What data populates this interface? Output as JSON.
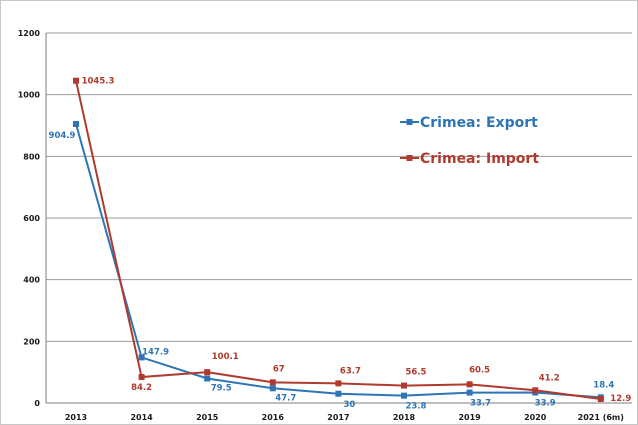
{
  "chart_data": {
    "type": "line",
    "title": "",
    "xlabel": "",
    "ylabel": "",
    "categories": [
      "2013",
      "2014",
      "2015",
      "2016",
      "2017",
      "2018",
      "2019",
      "2020",
      "2021 (6m)"
    ],
    "ylim": [
      0,
      1200
    ],
    "yticks": [
      "0",
      "200",
      "400",
      "600",
      "800",
      "1000",
      "1200"
    ],
    "grid": "horizontal",
    "legend_position": "right",
    "series": [
      {
        "name": "Crimea: Export",
        "color": "#2e75b6",
        "values": [
          904.9,
          147.9,
          79.5,
          47.7,
          30,
          23.8,
          33.7,
          33.9,
          18.4
        ],
        "labels": [
          "904.9",
          "147.9",
          "79.5",
          "47.7",
          "30",
          "23.8",
          "33.7",
          "33.9",
          "18.4"
        ]
      },
      {
        "name": "Crimea: Import",
        "color": "#b03a2e",
        "values": [
          1045.3,
          84.2,
          100.1,
          67,
          63.7,
          56.5,
          60.5,
          41.2,
          12.9
        ],
        "labels": [
          "1045.3",
          "84.2",
          "100.1",
          "67",
          "63.7",
          "56.5",
          "60.5",
          "41.2",
          "12.9"
        ]
      }
    ]
  }
}
